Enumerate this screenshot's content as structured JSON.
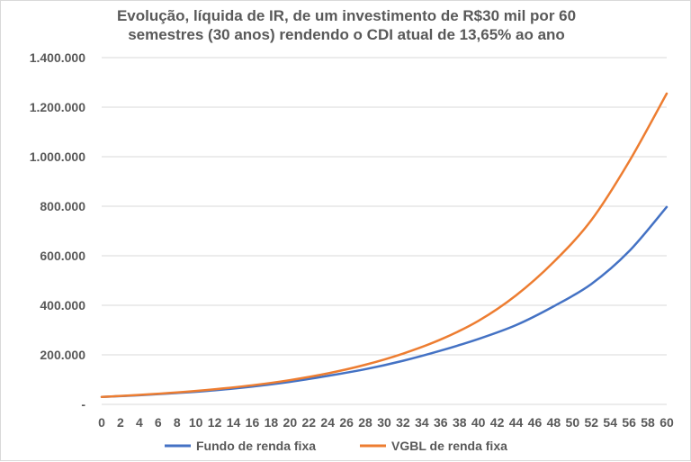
{
  "chart_data": {
    "type": "line",
    "title_lines": [
      "Evolução, líquida de IR, de um investimento de R$30 mil por 60",
      "semestres (30 anos) rendendo o CDI atual de 13,65% ao ano"
    ],
    "xlabel": "",
    "ylabel": "",
    "ylim": [
      0,
      1400000
    ],
    "yticks": [
      0,
      200000,
      400000,
      600000,
      800000,
      1000000,
      1200000,
      1400000
    ],
    "ytick_labels": [
      "-",
      "200.000",
      "400.000",
      "600.000",
      "800.000",
      "1.000.000",
      "1.200.000",
      "1.400.000"
    ],
    "xlim": [
      0,
      60
    ],
    "xticks": [
      0,
      2,
      4,
      6,
      8,
      10,
      12,
      14,
      16,
      18,
      20,
      22,
      24,
      26,
      28,
      30,
      32,
      34,
      36,
      38,
      40,
      42,
      44,
      46,
      48,
      50,
      52,
      54,
      56,
      58,
      60
    ],
    "grid": true,
    "legend_position": "bottom",
    "colors": {
      "fundo": "#4472c4",
      "vgbl": "#ed7d31",
      "text": "#595959",
      "grid": "#d9d9d9"
    },
    "series": [
      {
        "name": "Fundo de renda fixa",
        "x": [
          0,
          4,
          8,
          12,
          16,
          20,
          24,
          28,
          32,
          36,
          40,
          44,
          48,
          52,
          56,
          60
        ],
        "values": [
          30000,
          37000,
          46000,
          57000,
          72000,
          91000,
          115000,
          142000,
          176000,
          217000,
          264000,
          320000,
          396000,
          486000,
          618000,
          797000
        ]
      },
      {
        "name": "VGBL de renda fixa",
        "x": [
          0,
          4,
          8,
          12,
          16,
          20,
          24,
          28,
          32,
          36,
          40,
          44,
          48,
          52,
          56,
          60
        ],
        "values": [
          30000,
          38000,
          48000,
          61000,
          77000,
          98000,
          125000,
          160000,
          205000,
          262000,
          337000,
          440000,
          575000,
          744000,
          980000,
          1255000
        ]
      }
    ]
  }
}
